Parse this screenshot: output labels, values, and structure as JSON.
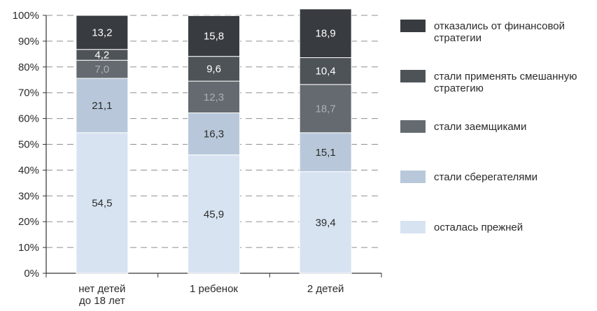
{
  "chart_data": {
    "type": "bar",
    "stacked": true,
    "percent": true,
    "categories": [
      [
        "нет детей",
        "до 18 лет"
      ],
      [
        "1 ребенок"
      ],
      [
        "2 детей"
      ]
    ],
    "y_ticks": [
      "0%",
      "10%",
      "20%",
      "30%",
      "40%",
      "50%",
      "60%",
      "70%",
      "80%",
      "90%",
      "100%"
    ],
    "ylim": [
      0,
      100
    ],
    "grid": "horizontal-dashed",
    "legend_position": "right",
    "series": [
      {
        "name": [
          "осталась прежней"
        ],
        "color": "#d7e3f1",
        "label_color": "#2b2b2b",
        "values": [
          54.5,
          45.9,
          39.4
        ],
        "labels": [
          "54,5",
          "45,9",
          "39,4"
        ]
      },
      {
        "name": [
          "стали сберегателями"
        ],
        "color": "#b8c8da",
        "label_color": "#2b2b2b",
        "values": [
          21.1,
          16.3,
          15.1
        ],
        "labels": [
          "21,1",
          "16,3",
          "15,1"
        ]
      },
      {
        "name": [
          "стали заемщиками"
        ],
        "color": "#646a70",
        "label_color": "#aab0b6",
        "values": [
          7.0,
          12.3,
          18.7
        ],
        "labels": [
          "7,0",
          "12,3",
          "18,7"
        ]
      },
      {
        "name": [
          "стали применять смешанную",
          "стратегию"
        ],
        "color": "#4e5358",
        "label_color": "#ffffff",
        "values": [
          4.2,
          9.6,
          10.4
        ],
        "labels": [
          "4,2",
          "9,6",
          "10,4"
        ]
      },
      {
        "name": [
          "отказались от финансовой",
          "стратегии"
        ],
        "color": "#383c40",
        "label_color": "#ffffff",
        "values": [
          13.2,
          15.8,
          18.9
        ],
        "labels": [
          "13,2",
          "15,8",
          "18,9"
        ]
      }
    ]
  }
}
